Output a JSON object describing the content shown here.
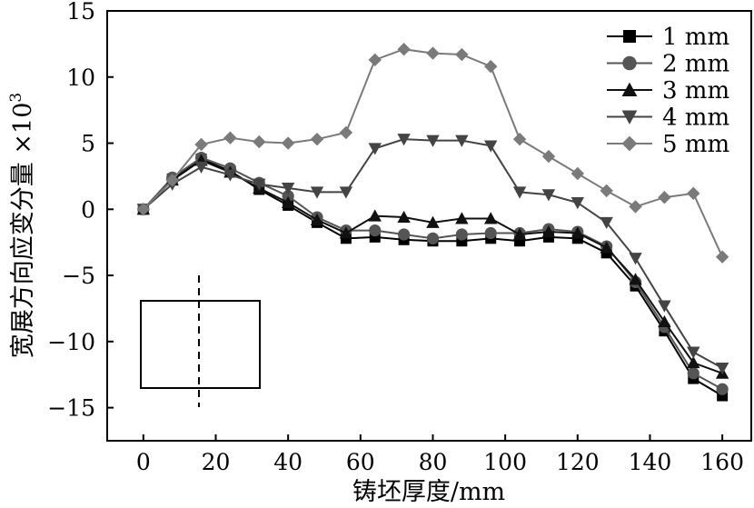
{
  "chart_data": {
    "type": "line",
    "xlabel": "铸坯厚度/mm",
    "ylabel": "宽展方向应变分量 ×10",
    "ylabel_exponent": "3",
    "xlim": [
      -10,
      168
    ],
    "ylim": [
      -17.5,
      15
    ],
    "xticks": [
      0,
      20,
      40,
      60,
      80,
      100,
      120,
      140,
      160
    ],
    "yticks": [
      15,
      10,
      5,
      0,
      -5,
      -10,
      -15
    ],
    "ytick_labels": [
      "15",
      "10",
      "5",
      "0",
      "−5",
      "−10",
      "−15"
    ],
    "legend_position": "top-right",
    "x": [
      0,
      8,
      16,
      24,
      32,
      40,
      48,
      56,
      64,
      72,
      80,
      88,
      96,
      104,
      112,
      120,
      128,
      136,
      144,
      152,
      160
    ],
    "series": [
      {
        "name": "1 mm",
        "color": "#000000",
        "marker": "square",
        "values": [
          0,
          2.3,
          3.8,
          2.9,
          1.5,
          0.3,
          -1.0,
          -2.2,
          -2.1,
          -2.3,
          -2.4,
          -2.4,
          -2.2,
          -2.4,
          -2.1,
          -2.2,
          -3.3,
          -5.8,
          -9.2,
          -12.8,
          -14.1
        ]
      },
      {
        "name": "2 mm",
        "color": "#555555",
        "marker": "circle",
        "values": [
          0,
          2.4,
          3.9,
          3.1,
          2.0,
          1.0,
          -0.6,
          -1.6,
          -1.6,
          -1.9,
          -2.2,
          -1.9,
          -1.8,
          -1.8,
          -1.5,
          -1.7,
          -2.8,
          -5.5,
          -8.9,
          -12.4,
          -13.6
        ]
      },
      {
        "name": "3 mm",
        "color": "#111111",
        "marker": "triangle-up",
        "values": [
          0,
          2.2,
          3.7,
          2.8,
          1.6,
          0.5,
          -0.8,
          -1.8,
          -0.5,
          -0.6,
          -1.0,
          -0.7,
          -0.7,
          -1.9,
          -1.7,
          -1.8,
          -2.9,
          -5.3,
          -8.5,
          -11.6,
          -12.4
        ]
      },
      {
        "name": "4 mm",
        "color": "#444444",
        "marker": "triangle-down",
        "values": [
          0,
          1.9,
          3.2,
          2.6,
          1.9,
          1.6,
          1.3,
          1.3,
          4.6,
          5.3,
          5.2,
          5.2,
          4.8,
          1.3,
          1.1,
          0.5,
          -1.0,
          -3.7,
          -7.3,
          -10.8,
          -12.0
        ]
      },
      {
        "name": "5 mm",
        "color": "#7a7a7a",
        "marker": "diamond",
        "values": [
          0,
          2.2,
          4.9,
          5.4,
          5.1,
          5.0,
          5.3,
          5.8,
          11.3,
          12.1,
          11.8,
          11.7,
          10.8,
          5.3,
          4.0,
          2.7,
          1.4,
          0.2,
          0.9,
          1.2,
          -3.6
        ]
      }
    ]
  }
}
